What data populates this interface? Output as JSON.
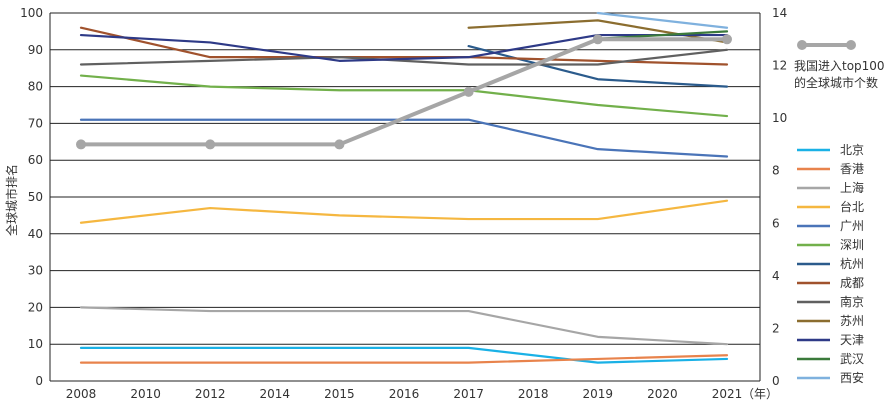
{
  "chart_data": {
    "type": "line",
    "title": "",
    "x": [
      "2008",
      "2010",
      "2012",
      "2014",
      "2015",
      "2016",
      "2017",
      "2018",
      "2019",
      "2020",
      "2021"
    ],
    "xlabel_unit": "（年）",
    "ylabel": "全球城市排名",
    "ylim": [
      0,
      100
    ],
    "y_ticks": [
      0,
      10,
      20,
      30,
      40,
      50,
      60,
      70,
      80,
      90,
      100
    ],
    "y2_ticks": [
      0,
      2,
      4,
      6,
      8,
      10,
      12,
      14
    ],
    "y2lim": [
      0,
      14
    ],
    "grid": "horizontal",
    "legend_position": "right",
    "series": [
      {
        "name": "北京",
        "color": "#1ab1e6",
        "axis": "left",
        "points": [
          [
            "2008",
            9
          ],
          [
            "2012",
            9
          ],
          [
            "2015",
            9
          ],
          [
            "2017",
            9
          ],
          [
            "2019",
            5
          ],
          [
            "2021",
            6
          ]
        ]
      },
      {
        "name": "香港",
        "color": "#e8834c",
        "axis": "left",
        "points": [
          [
            "2008",
            5
          ],
          [
            "2012",
            5
          ],
          [
            "2015",
            5
          ],
          [
            "2017",
            5
          ],
          [
            "2019",
            6
          ],
          [
            "2021",
            7
          ]
        ]
      },
      {
        "name": "上海",
        "color": "#a6a6a6",
        "axis": "left",
        "points": [
          [
            "2008",
            20
          ],
          [
            "2012",
            19
          ],
          [
            "2015",
            19
          ],
          [
            "2017",
            19
          ],
          [
            "2019",
            12
          ],
          [
            "2021",
            10
          ]
        ]
      },
      {
        "name": "台北",
        "color": "#f5b740",
        "axis": "left",
        "points": [
          [
            "2008",
            43
          ],
          [
            "2012",
            47
          ],
          [
            "2015",
            45
          ],
          [
            "2017",
            44
          ],
          [
            "2019",
            44
          ],
          [
            "2021",
            49
          ]
        ]
      },
      {
        "name": "广州",
        "color": "#4a74b8",
        "axis": "left",
        "points": [
          [
            "2008",
            71
          ],
          [
            "2012",
            71
          ],
          [
            "2015",
            71
          ],
          [
            "2017",
            71
          ],
          [
            "2019",
            63
          ],
          [
            "2021",
            61
          ]
        ]
      },
      {
        "name": "深圳",
        "color": "#72b04b",
        "axis": "left",
        "points": [
          [
            "2008",
            83
          ],
          [
            "2012",
            80
          ],
          [
            "2015",
            79
          ],
          [
            "2017",
            79
          ],
          [
            "2019",
            75
          ],
          [
            "2021",
            72
          ]
        ]
      },
      {
        "name": "杭州",
        "color": "#2b5b8c",
        "axis": "left",
        "points": [
          [
            "2017",
            91
          ],
          [
            "2019",
            82
          ],
          [
            "2021",
            80
          ]
        ]
      },
      {
        "name": "成都",
        "color": "#a0522d",
        "axis": "left",
        "points": [
          [
            "2008",
            96
          ],
          [
            "2012",
            88
          ],
          [
            "2015",
            88
          ],
          [
            "2017",
            88
          ],
          [
            "2019",
            87
          ],
          [
            "2021",
            86
          ]
        ]
      },
      {
        "name": "南京",
        "color": "#606060",
        "axis": "left",
        "points": [
          [
            "2008",
            86
          ],
          [
            "2012",
            87
          ],
          [
            "2015",
            88
          ],
          [
            "2017",
            86
          ],
          [
            "2019",
            86
          ],
          [
            "2021",
            90
          ]
        ]
      },
      {
        "name": "苏州",
        "color": "#8b6d2f",
        "axis": "left",
        "points": [
          [
            "2017",
            96
          ],
          [
            "2019",
            98
          ],
          [
            "2021",
            92
          ]
        ]
      },
      {
        "name": "天津",
        "color": "#2e3a87",
        "axis": "left",
        "points": [
          [
            "2008",
            94
          ],
          [
            "2012",
            92
          ],
          [
            "2015",
            87
          ],
          [
            "2017",
            88
          ],
          [
            "2019",
            94
          ],
          [
            "2021",
            94
          ]
        ]
      },
      {
        "name": "武汉",
        "color": "#3b7a3b",
        "axis": "left",
        "points": [
          [
            "2019",
            93
          ],
          [
            "2021",
            95
          ]
        ]
      },
      {
        "name": "西安",
        "color": "#7fb1de",
        "axis": "left",
        "points": [
          [
            "2019",
            100
          ],
          [
            "2021",
            96
          ]
        ]
      },
      {
        "name": "我国进入top100的全球城市个数",
        "color": "#a6a6a6",
        "axis": "right",
        "markers": true,
        "points": [
          [
            "2008",
            9
          ],
          [
            "2012",
            9
          ],
          [
            "2015",
            9
          ],
          [
            "2017",
            11
          ],
          [
            "2019",
            13
          ],
          [
            "2021",
            13
          ]
        ]
      }
    ]
  }
}
